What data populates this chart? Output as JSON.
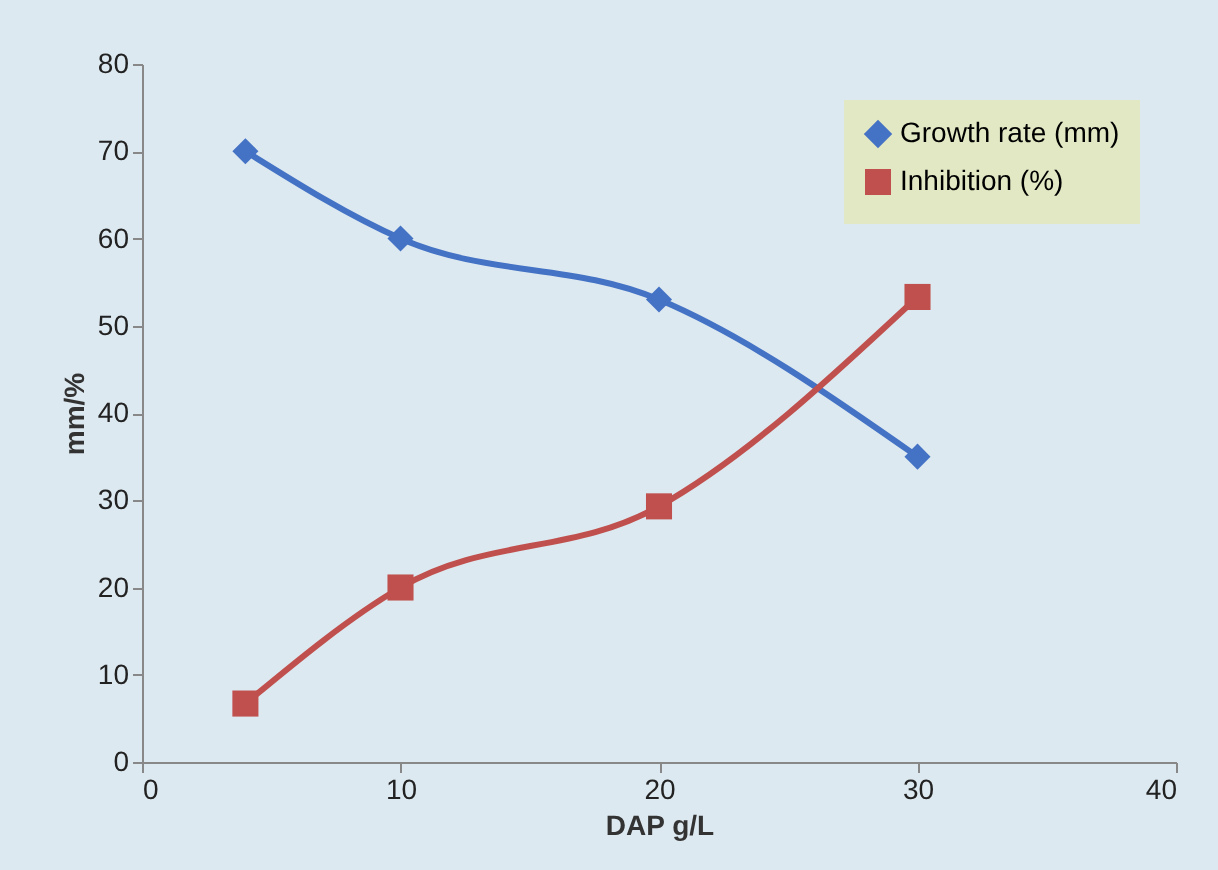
{
  "chart_data": {
    "type": "line",
    "xlabel": "DAP g/L",
    "ylabel": "mm/%",
    "x": [
      4,
      10,
      20,
      30
    ],
    "series": [
      {
        "name": "Growth rate (mm)",
        "color": "#4472c4",
        "marker": "diamond",
        "values": [
          70,
          60,
          53,
          35
        ]
      },
      {
        "name": "Inhibition (%)",
        "color": "#c0504d",
        "marker": "square",
        "values": [
          6.7,
          20,
          29.3,
          53.3
        ]
      }
    ],
    "xlim": [
      0,
      40
    ],
    "xticks": [
      0,
      10,
      20,
      30,
      40
    ],
    "ylim": [
      0,
      80
    ],
    "yticks": [
      0,
      10,
      20,
      30,
      40,
      50,
      60,
      70,
      80
    ],
    "grid": false,
    "legend": "top right",
    "line_style": "solid"
  }
}
